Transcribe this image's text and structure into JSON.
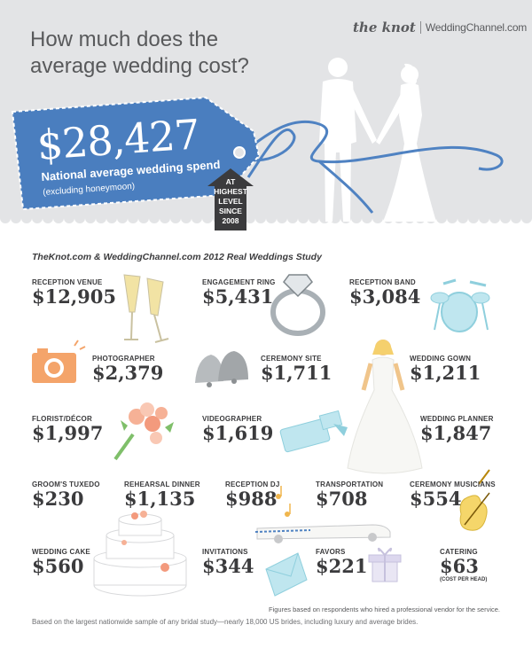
{
  "brand": {
    "logo1": "the knot",
    "logo2": "WeddingChannel.com"
  },
  "headline": {
    "line1": "How much does the",
    "line2": "average wedding cost?"
  },
  "tag": {
    "amount": "$28,427",
    "label": "National average wedding spend",
    "note": "(excluding honeymoon)",
    "badge": [
      "AT",
      "HIGHEST",
      "LEVEL",
      "SINCE",
      "2008"
    ]
  },
  "study_title": "TheKnot.com & WeddingChannel.com 2012 Real Weddings Study",
  "items": {
    "reception_venue": {
      "label": "RECEPTION VENUE",
      "value": "$12,905"
    },
    "engagement_ring": {
      "label": "ENGAGEMENT RING",
      "value": "$5,431"
    },
    "reception_band": {
      "label": "RECEPTION BAND",
      "value": "$3,084"
    },
    "photographer": {
      "label": "PHOTOGRAPHER",
      "value": "$2,379"
    },
    "ceremony_site": {
      "label": "CEREMONY SITE",
      "value": "$1,711"
    },
    "wedding_gown": {
      "label": "WEDDING GOWN",
      "value": "$1,211"
    },
    "florist": {
      "label": "FLORIST/DÉCOR",
      "value": "$1,997"
    },
    "videographer": {
      "label": "VIDEOGRAPHER",
      "value": "$1,619"
    },
    "wedding_planner": {
      "label": "WEDDING PLANNER",
      "value": "$1,847"
    },
    "grooms_tuxedo": {
      "label": "GROOM'S TUXEDO",
      "value": "$230"
    },
    "rehearsal_dinner": {
      "label": "REHEARSAL DINNER",
      "value": "$1,135"
    },
    "reception_dj": {
      "label": "RECEPTION DJ",
      "value": "$988"
    },
    "transportation": {
      "label": "TRANSPORTATION",
      "value": "$708"
    },
    "ceremony_musicians": {
      "label": "CEREMONY MUSICIANS",
      "value": "$554"
    },
    "wedding_cake": {
      "label": "WEDDING CAKE",
      "value": "$560"
    },
    "invitations": {
      "label": "INVITATIONS",
      "value": "$344"
    },
    "favors": {
      "label": "FAVORS",
      "value": "$221"
    },
    "catering": {
      "label": "CATERING",
      "value": "$63",
      "note": "(COST PER HEAD)"
    }
  },
  "footer": {
    "note1": "Figures based on respondents who hired a professional vendor for the service.",
    "note2": "Based on the largest nationwide sample of any bridal study—nearly 18,000 US brides, including luxury and average brides."
  },
  "colors": {
    "tag_blue": "#4a7ebf",
    "ribbon_blue": "#4f82c2",
    "top_gray": "#e3e4e6",
    "text": "#3b3b3d",
    "badge": "#3b3b3d"
  },
  "icons": [
    "champagne-icon",
    "ring-icon",
    "drum-kit-icon",
    "camera-icon",
    "bells-icon",
    "wedding-gown-icon",
    "bouquet-icon",
    "video-camera-icon",
    "music-notes-icon",
    "limousine-icon",
    "violin-icon",
    "cake-icon",
    "envelope-icon",
    "gift-box-icon",
    "couple-silhouette-icon"
  ]
}
